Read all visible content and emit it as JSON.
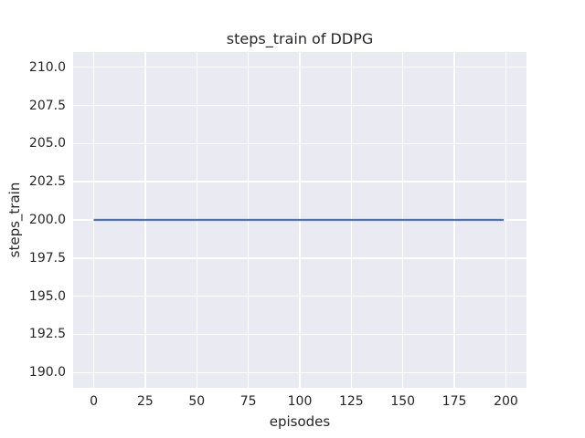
{
  "chart_data": {
    "type": "line",
    "title": "steps_train of DDPG",
    "xlabel": "episodes",
    "ylabel": "steps_train",
    "x_ticks": [
      0,
      25,
      50,
      75,
      100,
      125,
      150,
      175,
      200
    ],
    "x_tick_labels": [
      "0",
      "25",
      "50",
      "75",
      "100",
      "125",
      "150",
      "175",
      "200"
    ],
    "y_ticks": [
      210.0,
      207.5,
      205.0,
      202.5,
      200.0,
      197.5,
      195.0,
      192.5,
      190.0
    ],
    "y_tick_labels": [
      "210.0",
      "207.5",
      "205.0",
      "202.5",
      "200.0",
      "197.5",
      "195.0",
      "192.5",
      "190.0"
    ],
    "xlim": [
      -10,
      210
    ],
    "ylim": [
      189,
      211
    ],
    "grid": true,
    "legend_position": "none",
    "plot_background": "#eaeaf2",
    "grid_color": "#ffffff",
    "text_color": "#262626",
    "series": [
      {
        "name": "steps_train",
        "color": "#4c72b0",
        "x": [
          0,
          199
        ],
        "y": [
          200,
          200
        ]
      }
    ]
  }
}
